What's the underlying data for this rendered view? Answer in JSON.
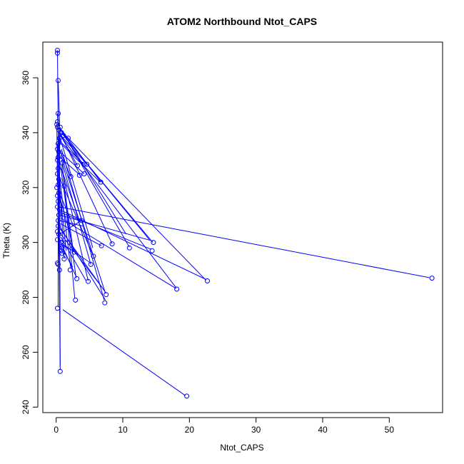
{
  "chart_data": {
    "type": "scatter",
    "title": "ATOM2 Northbound Ntot_CAPS",
    "xlabel": "Ntot_CAPS",
    "ylabel": "Theta (K)",
    "xlim": [
      -2,
      58
    ],
    "ylim": [
      238,
      373
    ],
    "x_ticks": [
      0,
      10,
      20,
      30,
      40,
      50
    ],
    "y_ticks": [
      240,
      260,
      280,
      300,
      320,
      340,
      360
    ],
    "grid": false,
    "legend": "none",
    "series_color": "#0000ff",
    "points": [
      [
        0.2,
        370.0
      ],
      [
        0.2,
        369.0
      ],
      [
        0.3,
        359.0
      ],
      [
        0.3,
        347.0
      ],
      [
        0.2,
        344.0
      ],
      [
        0.1,
        343.0
      ],
      [
        0.2,
        342.0
      ],
      [
        0.4,
        341.0
      ],
      [
        0.6,
        342.0
      ],
      [
        0.8,
        340.0
      ],
      [
        1.1,
        339.0
      ],
      [
        0.5,
        338.0
      ],
      [
        1.8,
        338.0
      ],
      [
        0.3,
        336.0
      ],
      [
        0.2,
        334.0
      ],
      [
        0.4,
        333.0
      ],
      [
        0.3,
        331.0
      ],
      [
        0.2,
        330.0
      ],
      [
        0.9,
        329.0
      ],
      [
        3.2,
        328.0
      ],
      [
        4.2,
        328.5
      ],
      [
        4.6,
        328.5
      ],
      [
        0.3,
        327.0
      ],
      [
        0.2,
        325.0
      ],
      [
        2.2,
        324.0
      ],
      [
        3.5,
        324.5
      ],
      [
        4.2,
        325.0
      ],
      [
        0.4,
        323.0
      ],
      [
        6.7,
        322.0
      ],
      [
        0.3,
        321.0
      ],
      [
        1.2,
        320.5
      ],
      [
        0.1,
        320.0
      ],
      [
        0.4,
        318.0
      ],
      [
        0.2,
        317.0
      ],
      [
        0.3,
        315.0
      ],
      [
        0.2,
        313.0
      ],
      [
        0.5,
        312.0
      ],
      [
        0.4,
        310.0
      ],
      [
        0.3,
        308.0
      ],
      [
        3.8,
        308.0
      ],
      [
        0.3,
        306.0
      ],
      [
        0.2,
        304.0
      ],
      [
        0.4,
        303.0
      ],
      [
        0.2,
        301.0
      ],
      [
        0.7,
        300.0
      ],
      [
        14.6,
        300.0
      ],
      [
        8.4,
        299.5
      ],
      [
        6.8,
        298.8
      ],
      [
        0.9,
        298.0
      ],
      [
        11.0,
        298.0
      ],
      [
        14.4,
        297.0
      ],
      [
        2.7,
        296.5
      ],
      [
        0.9,
        296.0
      ],
      [
        5.6,
        295.0
      ],
      [
        1.2,
        294.0
      ],
      [
        0.2,
        292.5
      ],
      [
        0.3,
        292.0
      ],
      [
        5.2,
        292.0
      ],
      [
        2.1,
        290.0
      ],
      [
        0.5,
        290.0
      ],
      [
        56.4,
        287.0
      ],
      [
        3.1,
        286.8
      ],
      [
        22.7,
        286.0
      ],
      [
        4.8,
        285.8
      ],
      [
        18.1,
        283.0
      ],
      [
        7.5,
        281.0
      ],
      [
        2.9,
        279.0
      ],
      [
        7.3,
        278.0
      ],
      [
        0.2,
        276.0
      ],
      [
        0.6,
        253.0
      ],
      [
        19.6,
        244.0
      ]
    ],
    "segments": [
      [
        0.2,
        370,
        0.3,
        341
      ],
      [
        0.3,
        359,
        0.6,
        336
      ],
      [
        0.2,
        347,
        0.5,
        330
      ],
      [
        0.3,
        344,
        0.4,
        318
      ],
      [
        0.1,
        343,
        0.2,
        321
      ],
      [
        0.5,
        341,
        0.4,
        310
      ],
      [
        0.6,
        342,
        0.3,
        312
      ],
      [
        0.5,
        338,
        0.6,
        255
      ],
      [
        0.2,
        336,
        0.3,
        300
      ],
      [
        0.8,
        340,
        1.8,
        338
      ],
      [
        0.8,
        340,
        14.0,
        301
      ],
      [
        1.1,
        339,
        14.5,
        300
      ],
      [
        0.6,
        341,
        22.5,
        286.2
      ],
      [
        0.6,
        339,
        18.0,
        283.5
      ],
      [
        0.8,
        341,
        11.0,
        298.3
      ],
      [
        1.1,
        340,
        6.7,
        322
      ],
      [
        0.8,
        341,
        10.5,
        303
      ],
      [
        0.6,
        340,
        8.4,
        299.5
      ],
      [
        0.7,
        339,
        4.6,
        328.5
      ],
      [
        0.6,
        338,
        5.5,
        298
      ],
      [
        0.9,
        338,
        3.2,
        328
      ],
      [
        0.5,
        337,
        4.2,
        328.5
      ],
      [
        0.7,
        336,
        6.6,
        322
      ],
      [
        0.5,
        334,
        2.2,
        324
      ],
      [
        0.6,
        333,
        4.2,
        325
      ],
      [
        0.7,
        332,
        7.4,
        281.5
      ],
      [
        0.8,
        334,
        7.2,
        279
      ],
      [
        0.6,
        331,
        3.6,
        324.5
      ],
      [
        0.8,
        330,
        5.2,
        292
      ],
      [
        0.6,
        329,
        4.8,
        286
      ],
      [
        0.9,
        329,
        2.8,
        279.5
      ],
      [
        0.7,
        327,
        3.0,
        287
      ],
      [
        0.5,
        324,
        2.2,
        290.5
      ],
      [
        0.6,
        323,
        5.6,
        295
      ],
      [
        1.2,
        320.5,
        2.6,
        296.5
      ],
      [
        0.5,
        322,
        1.2,
        294
      ],
      [
        0.9,
        326,
        3.5,
        308
      ],
      [
        0.5,
        320,
        1.5,
        297
      ],
      [
        0.6,
        316,
        2.2,
        302
      ],
      [
        0.5,
        318,
        2.6,
        306
      ],
      [
        0.4,
        313,
        56.0,
        287.2
      ],
      [
        0.5,
        312,
        22.5,
        286.5
      ],
      [
        0.6,
        311,
        14.3,
        297.5
      ],
      [
        0.5,
        310,
        14.5,
        300.5
      ],
      [
        0.6,
        309,
        18.0,
        283.2
      ],
      [
        0.4,
        308,
        4.0,
        306
      ],
      [
        0.5,
        307,
        6.8,
        298.8
      ],
      [
        0.5,
        306,
        7.4,
        279
      ],
      [
        0.6,
        305,
        7.5,
        281.5
      ],
      [
        0.4,
        304,
        6.9,
        283.6
      ],
      [
        0.5,
        303,
        3.8,
        308
      ],
      [
        0.7,
        302,
        4.5,
        286
      ],
      [
        0.5,
        301,
        3.0,
        287.5
      ],
      [
        0.6,
        300,
        5.2,
        292.5
      ],
      [
        0.5,
        300.5,
        2.4,
        300.5
      ],
      [
        0.6,
        299,
        2.5,
        291
      ],
      [
        0.7,
        298,
        1.3,
        294.5
      ],
      [
        0.5,
        297,
        0.9,
        296
      ],
      [
        0.9,
        299,
        2.7,
        296.8
      ],
      [
        1.0,
        275.5,
        19.4,
        244.2
      ],
      [
        0.3,
        341,
        0.6,
        253.5
      ],
      [
        0.4,
        306,
        0.3,
        292.5
      ],
      [
        0.3,
        309,
        0.5,
        290.5
      ],
      [
        0.3,
        303,
        0.3,
        276.5
      ]
    ]
  }
}
